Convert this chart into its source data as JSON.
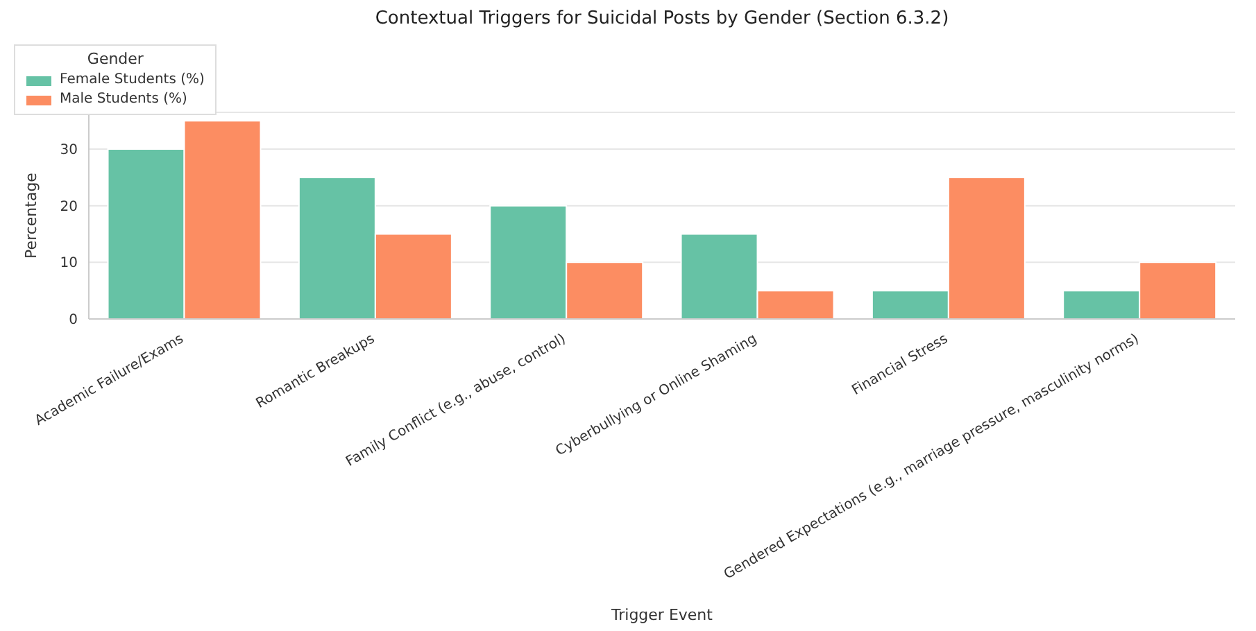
{
  "chart_data": {
    "type": "bar",
    "title": "Contextual Triggers for Suicidal Posts by Gender (Section 6.3.2)",
    "xlabel": "Trigger Event",
    "ylabel": "Percentage",
    "legend_title": "Gender",
    "categories": [
      "Academic Failure/Exams",
      "Romantic Breakups",
      "Family Conflict (e.g., abuse, control)",
      "Cyberbullying or Online Shaming",
      "Financial Stress",
      "Gendered Expectations (e.g., marriage pressure, masculinity norms)"
    ],
    "series": [
      {
        "name": "Female Students (%)",
        "color": "#66c2a5",
        "values": [
          30,
          25,
          20,
          15,
          5,
          5
        ]
      },
      {
        "name": "Male Students (%)",
        "color": "#fc8d62",
        "values": [
          35,
          15,
          10,
          5,
          25,
          10
        ]
      }
    ],
    "ylim": [
      0,
      36.5
    ],
    "yticks": [
      0,
      10,
      20,
      30
    ],
    "grid": "y",
    "legend": "top"
  }
}
